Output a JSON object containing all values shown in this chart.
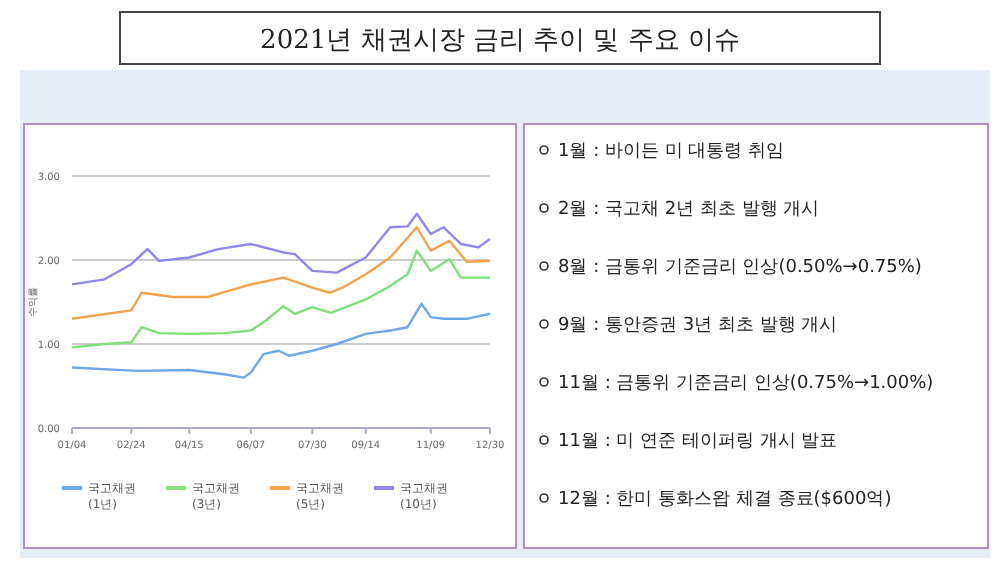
{
  "chart_data": {
    "type": "line",
    "title": "2021년 채권시장 금리 추이 및 주요 이슈",
    "ylabel": "수익률",
    "xlim": [
      "2021-01-04",
      "2021-12-30"
    ],
    "xticks": [
      {
        "value": "2021-01-04",
        "label": "01/04"
      },
      {
        "value": "2021-02-24",
        "label": "02/24"
      },
      {
        "value": "2021-04-15",
        "label": "04/15"
      },
      {
        "value": "2021-06-07",
        "label": "06/07"
      },
      {
        "value": "2021-07-30",
        "label": "07/30"
      },
      {
        "value": "2021-09-14",
        "label": "09/14"
      },
      {
        "value": "2021-11-09",
        "label": "11/09"
      },
      {
        "value": "2021-12-30",
        "label": "12/30"
      }
    ],
    "ylim": [
      0,
      3
    ],
    "yticks": [
      {
        "value": 0,
        "label": "0.00"
      },
      {
        "value": 1,
        "label": "1.00"
      },
      {
        "value": 2,
        "label": "2.00"
      },
      {
        "value": 3,
        "label": "3.00"
      }
    ],
    "grid": "y",
    "legend": "bottom",
    "series": [
      {
        "name": "국고채권(1년)",
        "color": "#6fa8e8",
        "x": [
          "2021-01-04",
          "2021-03-01",
          "2021-04-15",
          "2021-05-15",
          "2021-06-01",
          "2021-06-07",
          "2021-06-18",
          "2021-07-01",
          "2021-07-10",
          "2021-07-30",
          "2021-08-20",
          "2021-09-14",
          "2021-10-05",
          "2021-10-20",
          "2021-11-01",
          "2021-11-09",
          "2021-11-20",
          "2021-12-10",
          "2021-12-30"
        ],
        "values": [
          0.72,
          0.68,
          0.69,
          0.64,
          0.6,
          0.66,
          0.88,
          0.92,
          0.86,
          0.92,
          1.0,
          1.12,
          1.16,
          1.2,
          1.48,
          1.32,
          1.3,
          1.3,
          1.36
        ]
      },
      {
        "name": "국고채권(3년)",
        "color": "#7ee07a",
        "x": [
          "2021-01-04",
          "2021-02-01",
          "2021-02-24",
          "2021-03-05",
          "2021-03-20",
          "2021-04-15",
          "2021-05-15",
          "2021-06-07",
          "2021-06-20",
          "2021-07-05",
          "2021-07-15",
          "2021-07-30",
          "2021-08-15",
          "2021-09-14",
          "2021-10-05",
          "2021-10-20",
          "2021-10-28",
          "2021-11-09",
          "2021-11-25",
          "2021-12-05",
          "2021-12-30"
        ],
        "values": [
          0.96,
          1.0,
          1.02,
          1.2,
          1.13,
          1.12,
          1.13,
          1.16,
          1.28,
          1.45,
          1.36,
          1.44,
          1.37,
          1.53,
          1.69,
          1.83,
          2.11,
          1.87,
          2.01,
          1.79,
          1.79
        ]
      },
      {
        "name": "국고채권(5년)",
        "color": "#f5a04a",
        "x": [
          "2021-01-04",
          "2021-02-24",
          "2021-03-05",
          "2021-04-01",
          "2021-05-01",
          "2021-06-07",
          "2021-07-05",
          "2021-07-30",
          "2021-08-14",
          "2021-08-25",
          "2021-09-14",
          "2021-10-05",
          "2021-10-28",
          "2021-11-09",
          "2021-11-25",
          "2021-12-10",
          "2021-12-30"
        ],
        "values": [
          1.3,
          1.4,
          1.61,
          1.56,
          1.56,
          1.71,
          1.79,
          1.67,
          1.61,
          1.67,
          1.83,
          2.03,
          2.39,
          2.11,
          2.23,
          1.98,
          1.99
        ]
      },
      {
        "name": "국고채권(10년)",
        "color": "#8f86f0",
        "x": [
          "2021-01-04",
          "2021-02-01",
          "2021-02-24",
          "2021-03-10",
          "2021-03-20",
          "2021-04-15",
          "2021-05-10",
          "2021-06-07",
          "2021-07-05",
          "2021-07-15",
          "2021-07-30",
          "2021-08-20",
          "2021-09-14",
          "2021-10-05",
          "2021-10-20",
          "2021-10-28",
          "2021-11-09",
          "2021-11-20",
          "2021-12-05",
          "2021-12-20",
          "2021-12-30"
        ],
        "values": [
          1.71,
          1.77,
          1.95,
          2.13,
          1.99,
          2.03,
          2.13,
          2.19,
          2.09,
          2.07,
          1.87,
          1.85,
          2.03,
          2.39,
          2.4,
          2.55,
          2.31,
          2.39,
          2.19,
          2.15,
          2.25
        ]
      }
    ],
    "annotations": [
      "1월 : 바이든 미 대통령 취임",
      "2월 : 국고채 2년 최초 발행 개시",
      "8월 : 금통위 기준금리 인상(0.50%→0.75%)",
      "9월 : 통안증권 3년 최초 발행 개시",
      "11월 : 금통위 기준금리 인상(0.75%→1.00%)",
      "11월 : 미 연준 테이퍼링 개시 발표",
      "12월 : 한미 통화스왑 체결 종료($600억)"
    ]
  }
}
